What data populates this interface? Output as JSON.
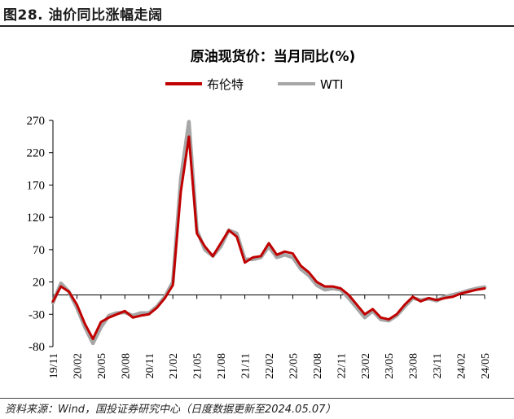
{
  "figure_title": "图28. 油价同比涨幅走阔",
  "source_note": "资料来源：Wind，国投证券研究中心（日度数据更新至2024.05.07）",
  "chart_data": {
    "type": "line",
    "title": "原油现货价：当月同比(%)",
    "xlabel": "",
    "ylabel": "",
    "ylim": [
      -80,
      270
    ],
    "yticks": [
      -80,
      -30,
      20,
      70,
      120,
      170,
      220,
      270
    ],
    "xtick_labels": [
      "19/11",
      "20/02",
      "20/05",
      "20/08",
      "20/11",
      "21/02",
      "21/05",
      "21/08",
      "21/11",
      "22/02",
      "22/05",
      "22/08",
      "22/11",
      "23/02",
      "23/05",
      "23/08",
      "23/11",
      "24/02",
      "24/05"
    ],
    "legend_position": "top-center",
    "grid": false,
    "x": [
      "19/11",
      "19/12",
      "20/01",
      "20/02",
      "20/03",
      "20/04",
      "20/05",
      "20/06",
      "20/07",
      "20/08",
      "20/09",
      "20/10",
      "20/11",
      "20/12",
      "21/01",
      "21/02",
      "21/03",
      "21/04",
      "21/05",
      "21/06",
      "21/07",
      "21/08",
      "21/09",
      "21/10",
      "21/11",
      "21/12",
      "22/01",
      "22/02",
      "22/03",
      "22/04",
      "22/05",
      "22/06",
      "22/07",
      "22/08",
      "22/09",
      "22/10",
      "22/11",
      "22/12",
      "23/01",
      "23/02",
      "23/03",
      "23/04",
      "23/05",
      "23/06",
      "23/07",
      "23/08",
      "23/09",
      "23/10",
      "23/11",
      "23/12",
      "24/01",
      "24/02",
      "24/03",
      "24/04",
      "24/05"
    ],
    "series": [
      {
        "name": "布伦特",
        "color": "#c00000",
        "values": [
          -10,
          13,
          5,
          -15,
          -45,
          -68,
          -42,
          -35,
          -30,
          -25,
          -35,
          -32,
          -30,
          -20,
          -5,
          15,
          160,
          245,
          95,
          75,
          60,
          80,
          100,
          90,
          50,
          58,
          60,
          80,
          62,
          67,
          64,
          45,
          35,
          20,
          13,
          13,
          10,
          0,
          -15,
          -30,
          -22,
          -35,
          -38,
          -30,
          -15,
          -3,
          -10,
          -5,
          -8,
          -5,
          -3,
          2,
          5,
          8,
          10
        ]
      },
      {
        "name": "WTI",
        "color": "#a6a6a6",
        "values": [
          -12,
          18,
          5,
          -20,
          -50,
          -75,
          -50,
          -32,
          -28,
          -27,
          -32,
          -28,
          -28,
          -18,
          -3,
          20,
          180,
          268,
          100,
          70,
          60,
          75,
          100,
          95,
          55,
          55,
          58,
          75,
          58,
          62,
          58,
          40,
          30,
          15,
          8,
          10,
          8,
          -5,
          -20,
          -35,
          -25,
          -38,
          -40,
          -32,
          -18,
          -5,
          -8,
          -6,
          -9,
          -3,
          0,
          3,
          7,
          10,
          12
        ]
      }
    ]
  }
}
